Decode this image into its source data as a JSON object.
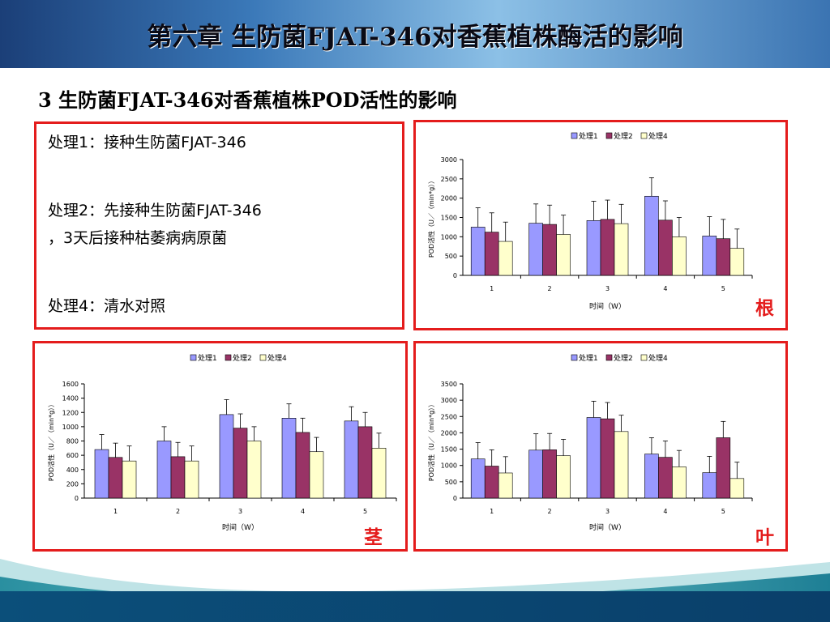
{
  "header": {
    "title": "第六章 生防菌FJAT-346对香蕉植株酶活的影响"
  },
  "subtitle": "3 生防菌FJAT-346对香蕉植株POD活性的影响",
  "legend_box": {
    "line1": "处理1：接种生防菌FJAT-346",
    "line2a": "处理2：先接种生防菌FJAT-346",
    "line2b": "，3天后接种枯萎病病原菌",
    "line3": "处理4：清水对照"
  },
  "colors": {
    "series1": "#9999ff",
    "series2": "#993366",
    "series3": "#ffffcc",
    "frame": "#e41c1c",
    "organ_label": "#e41c1c"
  },
  "chart_data": [
    {
      "id": "root",
      "type": "bar",
      "organ_label": "根",
      "categories": [
        "1",
        "2",
        "3",
        "4",
        "5"
      ],
      "series": [
        {
          "name": "处理1",
          "values": [
            1250,
            1350,
            1420,
            2050,
            1020
          ],
          "errors": [
            500,
            500,
            500,
            480,
            500
          ]
        },
        {
          "name": "处理2",
          "values": [
            1120,
            1320,
            1450,
            1430,
            950
          ],
          "errors": [
            500,
            500,
            500,
            500,
            500
          ]
        },
        {
          "name": "处理4",
          "values": [
            880,
            1060,
            1340,
            1000,
            700
          ],
          "errors": [
            500,
            500,
            500,
            500,
            500
          ]
        }
      ],
      "yticks": [
        0,
        500,
        1000,
        1500,
        2000,
        2500,
        3000
      ],
      "ylim": [
        0,
        3000
      ],
      "xlabel": "时间（W）",
      "ylabel": "POD活性（U／（min*g））",
      "legend_position": "top"
    },
    {
      "id": "stem",
      "type": "bar",
      "organ_label": "茎",
      "categories": [
        "1",
        "2",
        "3",
        "4",
        "5"
      ],
      "series": [
        {
          "name": "处理1",
          "values": [
            680,
            800,
            1170,
            1120,
            1080
          ],
          "errors": [
            210,
            200,
            210,
            200,
            200
          ]
        },
        {
          "name": "处理2",
          "values": [
            570,
            580,
            980,
            920,
            1000
          ],
          "errors": [
            200,
            200,
            200,
            200,
            200
          ]
        },
        {
          "name": "处理4",
          "values": [
            520,
            520,
            800,
            650,
            700
          ],
          "errors": [
            210,
            210,
            200,
            200,
            210
          ]
        }
      ],
      "yticks": [
        0,
        200,
        400,
        600,
        800,
        1000,
        1200,
        1400,
        1600
      ],
      "ylim": [
        0,
        1600
      ],
      "xlabel": "时间（W）",
      "ylabel": "POD活性（U／（min*g））",
      "legend_position": "top"
    },
    {
      "id": "leaf",
      "type": "bar",
      "organ_label": "叶",
      "categories": [
        "1",
        "2",
        "3",
        "4",
        "5"
      ],
      "series": [
        {
          "name": "处理1",
          "values": [
            1200,
            1470,
            2470,
            1350,
            780
          ],
          "errors": [
            500,
            500,
            500,
            500,
            500
          ]
        },
        {
          "name": "处理2",
          "values": [
            980,
            1480,
            2430,
            1250,
            1850
          ],
          "errors": [
            500,
            500,
            500,
            500,
            500
          ]
        },
        {
          "name": "处理4",
          "values": [
            770,
            1300,
            2040,
            960,
            600
          ],
          "errors": [
            500,
            500,
            500,
            500,
            500
          ]
        }
      ],
      "yticks": [
        0,
        500,
        1000,
        1500,
        2000,
        2500,
        3000,
        3500
      ],
      "ylim": [
        0,
        3500
      ],
      "xlabel": "时间（W）",
      "ylabel": "POD活性（U／（min*g））",
      "legend_position": "top"
    }
  ]
}
